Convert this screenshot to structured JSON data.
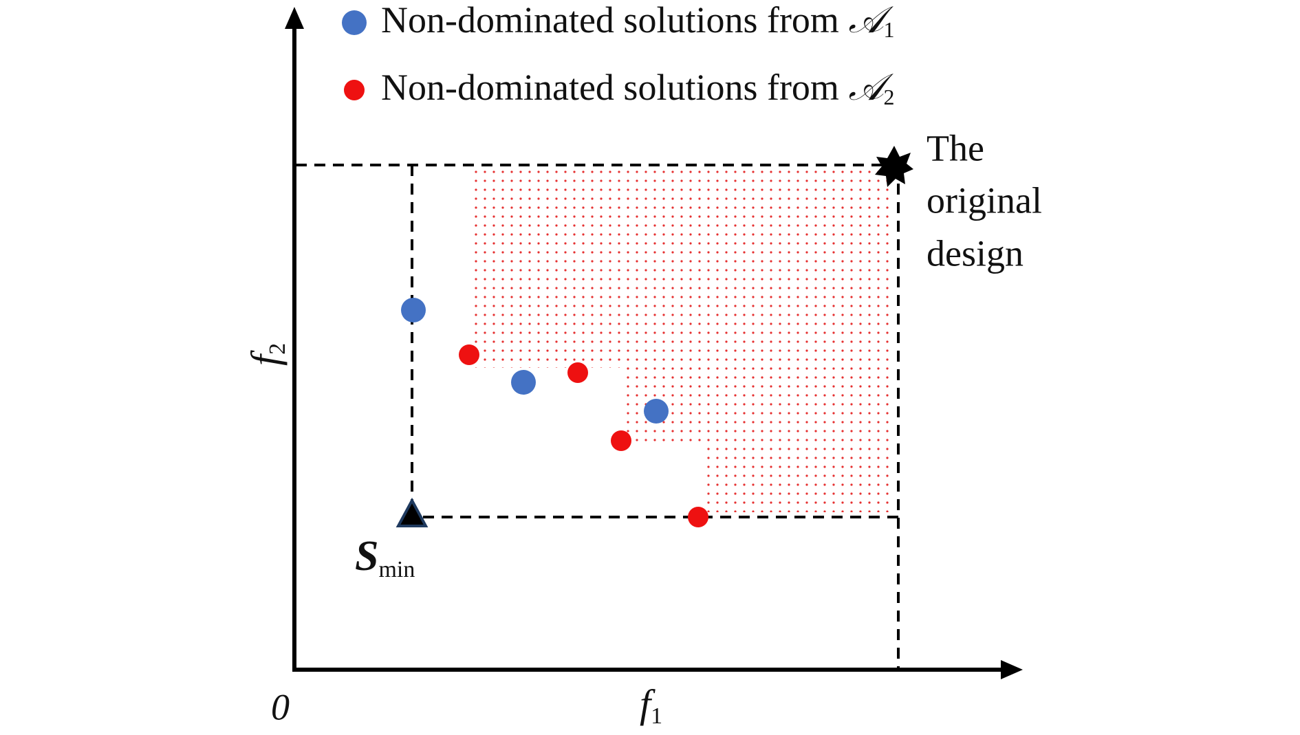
{
  "legend": [
    {
      "text": "Non-dominated solutions from ",
      "symbol": "𝒜",
      "subscript": "1"
    },
    {
      "text": "Non-dominated solutions from ",
      "symbol": "𝒜",
      "subscript": "2"
    }
  ],
  "axes": {
    "x_label": {
      "text": "f",
      "subscript": "1"
    },
    "y_label": {
      "text": "f",
      "subscript": "2"
    },
    "origin": "0"
  },
  "annotations": {
    "min_point": {
      "text": "S",
      "subscript": "min"
    },
    "original_design": [
      "The",
      "original",
      "design"
    ]
  }
}
